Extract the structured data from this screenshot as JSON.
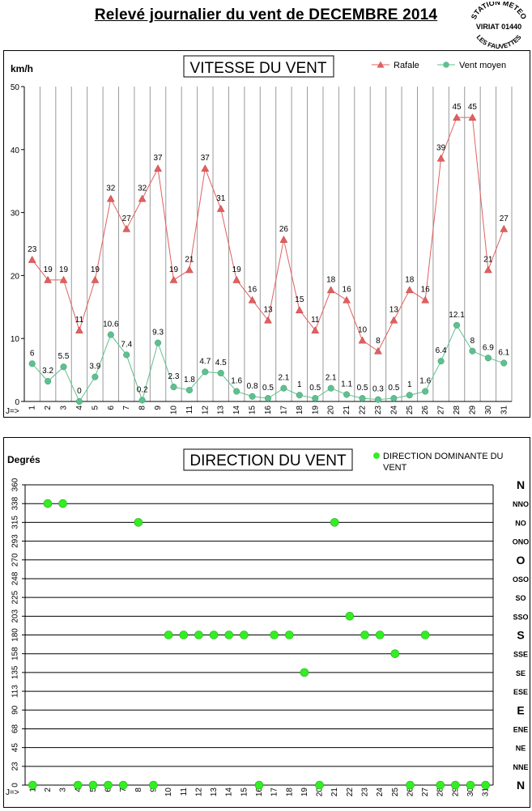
{
  "page": {
    "title": "Relevé journalier du vent de DECEMBRE 2014",
    "stamp": {
      "top": "STATION METEO",
      "middle": "VIRIAT 01440",
      "bottom": "LES FAUVETTES"
    }
  },
  "chart_data": [
    {
      "type": "line",
      "title": "VITESSE DU VENT",
      "ylabel": "km/h",
      "xlabel": "J=>",
      "ylim": [
        0,
        50
      ],
      "yticks": [
        "0",
        "10",
        "20",
        "30",
        "40",
        "50"
      ],
      "x": [
        "1",
        "2",
        "3",
        "4",
        "5",
        "6",
        "7",
        "8",
        "9",
        "10",
        "11",
        "12",
        "13",
        "14",
        "15",
        "16",
        "17",
        "18",
        "19",
        "20",
        "21",
        "22",
        "23",
        "24",
        "25",
        "26",
        "27",
        "28",
        "29",
        "30",
        "31"
      ],
      "grid": true,
      "legend": "top-right",
      "series": [
        {
          "name": "Rafale",
          "color": "#e06060",
          "marker": "triangle",
          "values": [
            22.5,
            19.3,
            19.3,
            11.3,
            19.3,
            32.2,
            27.4,
            32.2,
            37.0,
            19.3,
            20.9,
            37.0,
            30.6,
            19.3,
            16.1,
            12.9,
            25.7,
            14.5,
            11.3,
            17.7,
            16.1,
            9.7,
            8.0,
            12.9,
            17.7,
            16.1,
            38.6,
            45.1,
            45.1,
            20.9,
            27.4
          ],
          "labels": [
            "23",
            "19",
            "19",
            "11",
            "19",
            "32",
            "27",
            "32",
            "37",
            "19",
            "21",
            "37",
            "31",
            "19",
            "16",
            "13",
            "26",
            "15",
            "11",
            "18",
            "16",
            "10",
            "8",
            "13",
            "18",
            "16",
            "39",
            "45",
            "45",
            "21",
            "27"
          ]
        },
        {
          "name": "Vent moyen",
          "color": "#5fc08f",
          "marker": "circle",
          "values": [
            6,
            3.2,
            5.5,
            0,
            3.9,
            10.6,
            7.4,
            0.2,
            9.3,
            2.3,
            1.8,
            4.7,
            4.5,
            1.6,
            0.8,
            0.5,
            2.1,
            1,
            0.5,
            2.1,
            1.1,
            0.5,
            0.3,
            0.5,
            1,
            1.6,
            6.4,
            12.1,
            8,
            6.9,
            6.1
          ],
          "labels": [
            "6",
            "3.2",
            "5.5",
            "0",
            "3.9",
            "10.6",
            "7.4",
            "0.2",
            "9.3",
            "2.3",
            "1.8",
            "4.7",
            "4.5",
            "1.6",
            "0.8",
            "0.5",
            "2.1",
            "1",
            "0.5",
            "2.1",
            "1.1",
            "0.5",
            "0.3",
            "0.5",
            "1",
            "1.6",
            "6.4",
            "12.1",
            "8",
            "6.9",
            "6.1"
          ]
        }
      ]
    },
    {
      "type": "scatter",
      "title": "DIRECTION DU VENT",
      "ylabel": "Degrés",
      "xlabel": "J=>",
      "ylim": [
        0,
        360
      ],
      "yticks": [
        "0",
        "23",
        "45",
        "68",
        "90",
        "113",
        "135",
        "158",
        "180",
        "203",
        "225",
        "248",
        "270",
        "293",
        "315",
        "338",
        "360"
      ],
      "compass": [
        "N",
        "NNE",
        "NE",
        "ENE",
        "E",
        "ESE",
        "SE",
        "SSE",
        "S",
        "SSO",
        "SO",
        "OSO",
        "O",
        "ONO",
        "NO",
        "NNO",
        "N"
      ],
      "compass_major": [
        "N",
        "E",
        "S",
        "O"
      ],
      "x": [
        "1",
        "2",
        "3",
        "4",
        "5",
        "6",
        "7",
        "8",
        "9",
        "10",
        "11",
        "12",
        "13",
        "14",
        "15",
        "16",
        "17",
        "18",
        "19",
        "20",
        "21",
        "22",
        "23",
        "24",
        "25",
        "26",
        "27",
        "28",
        "29",
        "30",
        "31"
      ],
      "grid": true,
      "legend": "top-right",
      "series": [
        {
          "name": "DIRECTION DOMINANTE DU VENT",
          "color": "#33ee22",
          "marker": "circle",
          "values": [
            0,
            337.5,
            337.5,
            0,
            0,
            0,
            0,
            315,
            0,
            180,
            180,
            180,
            180,
            180,
            180,
            0,
            180,
            180,
            135,
            0,
            315,
            202.5,
            180,
            180,
            157.5,
            0,
            180,
            0,
            0,
            0,
            0
          ]
        }
      ]
    }
  ]
}
